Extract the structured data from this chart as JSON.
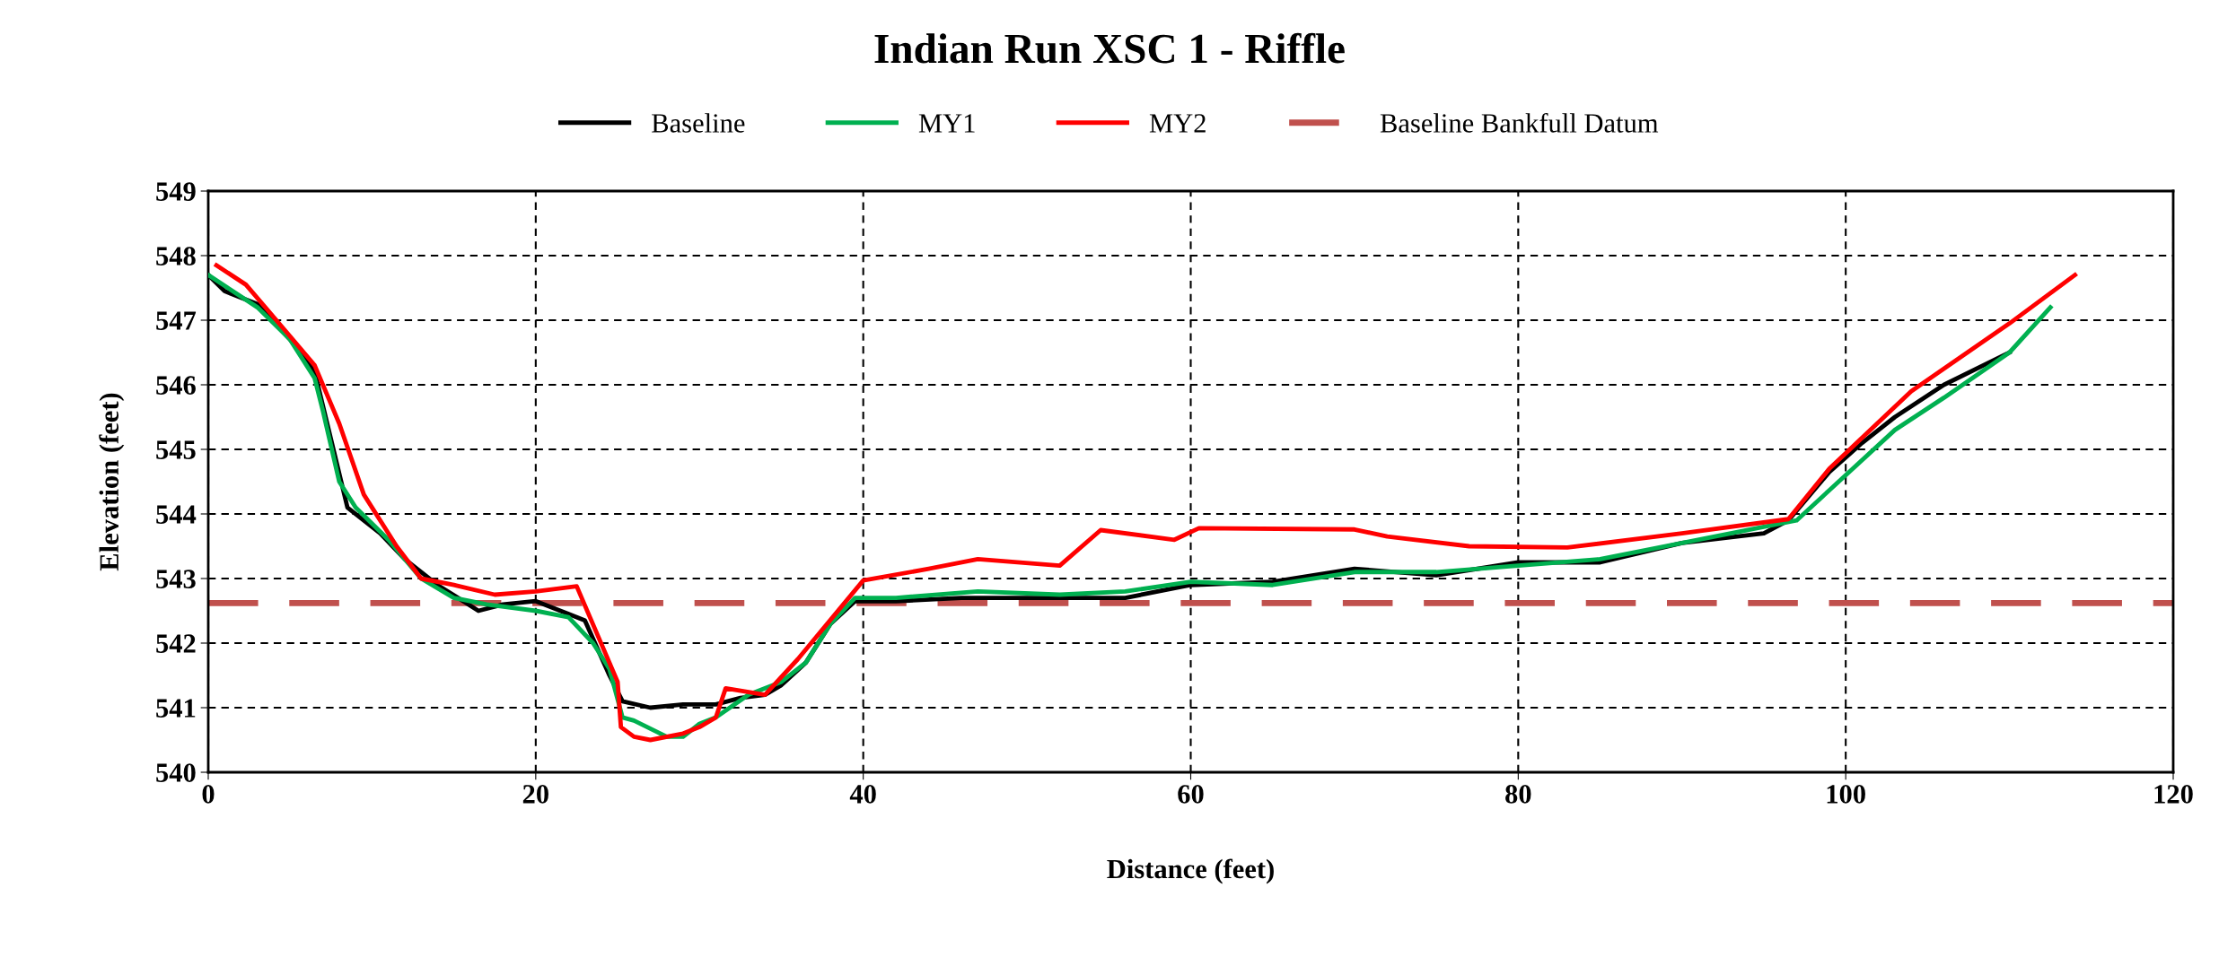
{
  "chart_data": {
    "type": "line",
    "title": "Indian Run XSC 1 - Riffle",
    "xlabel": "Distance (feet)",
    "ylabel": "Elevation (feet)",
    "xlim": [
      0,
      120
    ],
    "xticks": [
      0,
      20,
      40,
      60,
      80,
      100,
      120
    ],
    "ylim": [
      540,
      549
    ],
    "yticks": [
      540,
      541,
      542,
      543,
      544,
      545,
      546,
      547,
      548,
      549
    ],
    "grid": true,
    "legend": "top",
    "marker": "none",
    "line_style": "solid",
    "series": [
      {
        "name": "Baseline",
        "color": "#000000",
        "x": [
          0,
          1,
          3,
          5,
          6.5,
          8.5,
          10.5,
          12,
          14,
          16.5,
          18,
          20,
          22,
          23,
          24.5,
          25.3,
          27,
          29,
          31,
          32.5,
          34,
          35,
          36.5,
          38,
          39.5,
          42,
          46,
          50,
          56,
          60,
          65,
          70,
          75,
          80,
          85,
          90,
          95,
          96.5,
          99,
          101,
          103,
          106,
          110
        ],
        "values": [
          547.7,
          547.45,
          547.25,
          546.7,
          546.2,
          544.1,
          543.7,
          543.3,
          542.9,
          542.5,
          542.6,
          542.65,
          542.45,
          542.35,
          541.5,
          541.1,
          541.0,
          541.05,
          541.05,
          541.15,
          541.2,
          541.35,
          541.7,
          542.3,
          542.65,
          542.65,
          542.7,
          542.7,
          542.7,
          542.9,
          542.95,
          543.15,
          543.05,
          543.25,
          543.25,
          543.55,
          543.7,
          543.9,
          544.65,
          545.1,
          545.5,
          546.0,
          546.5
        ]
      },
      {
        "name": "MY1",
        "color": "#00b050",
        "x": [
          0,
          3,
          5,
          6.5,
          7,
          8,
          9,
          11,
          13,
          15,
          17,
          20,
          22,
          23.5,
          24.5,
          25.3,
          26,
          28,
          29,
          30,
          31,
          33,
          35,
          36.5,
          38,
          39.5,
          42,
          47,
          52,
          56,
          60,
          65,
          70,
          75,
          80,
          85,
          90,
          97,
          100,
          103,
          106,
          110,
          112.5
        ],
        "values": [
          547.7,
          547.2,
          546.7,
          546.1,
          545.6,
          544.5,
          544.1,
          543.6,
          543.0,
          542.7,
          542.6,
          542.5,
          542.4,
          542.0,
          541.6,
          540.85,
          540.8,
          540.55,
          540.55,
          540.75,
          540.85,
          541.2,
          541.4,
          541.7,
          542.3,
          542.7,
          542.7,
          542.8,
          542.75,
          542.8,
          542.95,
          542.9,
          543.1,
          543.1,
          543.2,
          543.3,
          543.55,
          543.9,
          544.6,
          545.3,
          545.8,
          546.5,
          547.2
        ]
      },
      {
        "name": "MY2",
        "color": "#ff0000",
        "x": [
          0.5,
          2.3,
          5,
          6.5,
          8,
          9.5,
          11.5,
          13,
          15,
          17.5,
          20,
          22.5,
          25,
          25.2,
          26,
          27,
          29,
          30,
          31,
          31.6,
          34,
          36,
          40,
          44,
          47,
          52,
          54.5,
          59,
          60.5,
          70,
          72,
          77,
          83,
          90,
          96.5,
          99,
          104,
          110,
          114
        ],
        "values": [
          547.85,
          547.55,
          546.75,
          546.3,
          545.4,
          544.3,
          543.5,
          543.0,
          542.9,
          542.75,
          542.8,
          542.88,
          541.4,
          540.7,
          540.55,
          540.5,
          540.6,
          540.7,
          540.85,
          541.3,
          541.2,
          541.75,
          542.97,
          543.15,
          543.3,
          543.2,
          543.75,
          543.6,
          543.78,
          543.76,
          543.65,
          543.5,
          543.48,
          543.7,
          543.92,
          544.7,
          545.9,
          546.95,
          547.7
        ]
      }
    ],
    "ref_lines": [
      {
        "axis": "y",
        "value": 542.62,
        "label": "Baseline Bankfull Datum",
        "color": "#c0504d",
        "line_style": "dashed"
      }
    ]
  }
}
